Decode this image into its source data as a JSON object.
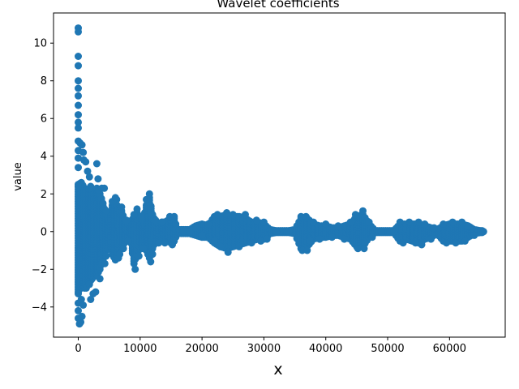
{
  "chart_data": {
    "type": "scatter",
    "title": "Wavelet coefficients",
    "xlabel": "x",
    "ylabel": "value",
    "xlim": [
      -4000,
      69000
    ],
    "ylim": [
      -5.6,
      11.6
    ],
    "xticks": [
      0,
      10000,
      20000,
      30000,
      40000,
      50000,
      60000
    ],
    "xtick_labels": [
      "0",
      "10000",
      "20000",
      "30000",
      "40000",
      "50000",
      "60000"
    ],
    "yticks": [
      -4,
      -2,
      0,
      2,
      4,
      6,
      8,
      10
    ],
    "ytick_labels": [
      "−4",
      "−2",
      "0",
      "2",
      "4",
      "6",
      "8",
      "10"
    ],
    "grid": false,
    "legend": "none",
    "marker_color": "#1f77b4",
    "series": [
      {
        "points": [
          [
            0,
            10.8
          ],
          [
            0,
            10.6
          ],
          [
            0,
            9.3
          ],
          [
            0,
            8.8
          ],
          [
            0,
            8.0
          ],
          [
            0,
            7.6
          ],
          [
            0,
            7.2
          ],
          [
            0,
            6.7
          ],
          [
            0,
            6.2
          ],
          [
            0,
            5.8
          ],
          [
            0,
            5.5
          ],
          [
            0,
            4.8
          ],
          [
            0,
            4.3
          ],
          [
            0,
            3.9
          ],
          [
            0,
            3.4
          ],
          [
            0,
            2.4
          ],
          [
            0,
            -3.3
          ],
          [
            0,
            -3.8
          ],
          [
            0,
            -4.2
          ],
          [
            0,
            -4.6
          ],
          [
            200,
            -4.9
          ],
          [
            400,
            -4.8
          ],
          [
            600,
            -4.5
          ],
          [
            300,
            4.7
          ],
          [
            600,
            4.6
          ],
          [
            800,
            4.2
          ],
          [
            900,
            3.8
          ],
          [
            500,
            -3.6
          ],
          [
            800,
            -3.9
          ],
          [
            1200,
            3.7
          ],
          [
            1500,
            3.2
          ],
          [
            1800,
            2.9
          ],
          [
            1300,
            -3.0
          ],
          [
            1800,
            -2.8
          ],
          [
            2000,
            -3.6
          ],
          [
            2400,
            -3.3
          ],
          [
            2800,
            -3.2
          ],
          [
            3000,
            3.6
          ],
          [
            3200,
            2.8
          ],
          [
            3300,
            2.2
          ],
          [
            3500,
            -2.5
          ],
          [
            3800,
            2.3
          ],
          [
            4200,
            2.3
          ],
          [
            4300,
            -1.7
          ],
          [
            4500,
            1.1
          ],
          [
            4500,
            -1.3
          ],
          [
            5500,
            1.6
          ],
          [
            6000,
            1.8
          ],
          [
            6200,
            1.7
          ],
          [
            6500,
            -1.4
          ],
          [
            6700,
            -1.2
          ],
          [
            7000,
            1.3
          ],
          [
            7300,
            -0.9
          ],
          [
            7800,
            0.6
          ],
          [
            8000,
            -0.5
          ],
          [
            9000,
            0.9
          ],
          [
            9200,
            -2.0
          ],
          [
            9500,
            1.2
          ],
          [
            9800,
            -1.3
          ],
          [
            10200,
            0.8
          ],
          [
            10500,
            -0.9
          ],
          [
            11000,
            1.7
          ],
          [
            11500,
            2.0
          ],
          [
            11700,
            -1.6
          ],
          [
            12000,
            -1.2
          ],
          [
            12500,
            0.6
          ],
          [
            13000,
            -0.6
          ],
          [
            13500,
            0.5
          ],
          [
            14000,
            -0.6
          ],
          [
            14800,
            0.8
          ],
          [
            15200,
            -0.7
          ],
          [
            15500,
            0.8
          ],
          [
            17000,
            0.0
          ],
          [
            18000,
            0.0
          ],
          [
            19000,
            0.2
          ],
          [
            20000,
            -0.2
          ],
          [
            21000,
            0.4
          ],
          [
            22000,
            -0.5
          ],
          [
            22500,
            0.9
          ],
          [
            23000,
            -0.8
          ],
          [
            24000,
            1.0
          ],
          [
            24200,
            -1.1
          ],
          [
            25000,
            0.9
          ],
          [
            26000,
            -0.8
          ],
          [
            27000,
            0.9
          ],
          [
            28000,
            -0.6
          ],
          [
            28800,
            0.6
          ],
          [
            29500,
            -0.5
          ],
          [
            30000,
            0.5
          ],
          [
            30500,
            -0.4
          ],
          [
            32000,
            0.0
          ],
          [
            34000,
            0.0
          ],
          [
            36000,
            0.8
          ],
          [
            36200,
            -1.0
          ],
          [
            36800,
            0.8
          ],
          [
            37000,
            -1.0
          ],
          [
            37500,
            -0.5
          ],
          [
            38000,
            0.5
          ],
          [
            39000,
            -0.4
          ],
          [
            40000,
            0.4
          ],
          [
            41000,
            -0.3
          ],
          [
            42000,
            0.3
          ],
          [
            43000,
            -0.4
          ],
          [
            44000,
            0.5
          ],
          [
            44800,
            0.9
          ],
          [
            45200,
            -0.9
          ],
          [
            46000,
            1.1
          ],
          [
            46200,
            -0.9
          ],
          [
            47000,
            0.5
          ],
          [
            47500,
            -0.3
          ],
          [
            49000,
            0.0
          ],
          [
            51000,
            0.0
          ],
          [
            52000,
            0.5
          ],
          [
            52500,
            -0.6
          ],
          [
            53500,
            0.5
          ],
          [
            54500,
            -0.6
          ],
          [
            55000,
            0.5
          ],
          [
            55500,
            -0.7
          ],
          [
            56000,
            0.4
          ],
          [
            57000,
            -0.4
          ],
          [
            57500,
            0.2
          ],
          [
            59000,
            0.4
          ],
          [
            59500,
            -0.6
          ],
          [
            60500,
            0.5
          ],
          [
            61000,
            -0.6
          ],
          [
            62000,
            0.5
          ],
          [
            62500,
            -0.5
          ],
          [
            63000,
            0.3
          ],
          [
            64000,
            -0.2
          ],
          [
            65000,
            0.0
          ],
          [
            65500,
            0.0
          ]
        ],
        "envelope": [
          [
            0,
            2.5,
            -3.2
          ],
          [
            500,
            2.6,
            -2.9
          ],
          [
            1000,
            2.3,
            -3.0
          ],
          [
            1500,
            2.1,
            -2.7
          ],
          [
            2000,
            2.4,
            -2.6
          ],
          [
            2500,
            2.0,
            -2.4
          ],
          [
            3000,
            2.3,
            -2.3
          ],
          [
            3500,
            2.0,
            -2.0
          ],
          [
            4000,
            1.5,
            -1.5
          ],
          [
            4500,
            0.9,
            -1.0
          ],
          [
            5000,
            0.6,
            -0.6
          ],
          [
            5500,
            1.4,
            -1.2
          ],
          [
            6000,
            1.6,
            -1.5
          ],
          [
            6500,
            1.2,
            -1.2
          ],
          [
            7000,
            1.1,
            -0.8
          ],
          [
            7500,
            0.6,
            -0.6
          ],
          [
            8000,
            0.4,
            -0.4
          ],
          [
            8500,
            0.5,
            -0.6
          ],
          [
            9000,
            0.8,
            -1.7
          ],
          [
            9500,
            1.0,
            -1.2
          ],
          [
            10000,
            0.7,
            -0.8
          ],
          [
            10500,
            0.6,
            -0.7
          ],
          [
            11000,
            1.4,
            -1.0
          ],
          [
            11500,
            1.8,
            -1.4
          ],
          [
            12000,
            0.9,
            -0.9
          ],
          [
            12500,
            0.5,
            -0.5
          ],
          [
            13000,
            0.4,
            -0.5
          ],
          [
            13500,
            0.5,
            -0.5
          ],
          [
            14000,
            0.5,
            -0.5
          ],
          [
            14500,
            0.6,
            -0.5
          ],
          [
            15000,
            0.7,
            -0.6
          ],
          [
            15500,
            0.7,
            -0.5
          ],
          [
            16000,
            0.1,
            -0.1
          ],
          [
            17000,
            0.1,
            -0.1
          ],
          [
            18000,
            0.1,
            -0.1
          ],
          [
            19000,
            0.3,
            -0.2
          ],
          [
            20000,
            0.4,
            -0.3
          ],
          [
            21000,
            0.3,
            -0.3
          ],
          [
            22000,
            0.8,
            -0.6
          ],
          [
            23000,
            0.8,
            -0.8
          ],
          [
            24000,
            0.9,
            -0.9
          ],
          [
            25000,
            0.8,
            -0.8
          ],
          [
            26000,
            0.8,
            -0.7
          ],
          [
            27000,
            0.7,
            -0.6
          ],
          [
            28000,
            0.5,
            -0.5
          ],
          [
            29000,
            0.5,
            -0.4
          ],
          [
            30000,
            0.4,
            -0.4
          ],
          [
            31000,
            0.1,
            -0.1
          ],
          [
            32000,
            0.05,
            -0.05
          ],
          [
            33000,
            0.05,
            -0.05
          ],
          [
            34000,
            0.05,
            -0.05
          ],
          [
            35000,
            0.1,
            -0.1
          ],
          [
            36000,
            0.7,
            -0.9
          ],
          [
            37000,
            0.7,
            -0.8
          ],
          [
            38000,
            0.4,
            -0.4
          ],
          [
            39000,
            0.3,
            -0.3
          ],
          [
            40000,
            0.3,
            -0.3
          ],
          [
            41000,
            0.2,
            -0.2
          ],
          [
            42000,
            0.2,
            -0.2
          ],
          [
            43000,
            0.3,
            -0.3
          ],
          [
            44000,
            0.4,
            -0.4
          ],
          [
            45000,
            0.8,
            -0.8
          ],
          [
            46000,
            0.9,
            -0.8
          ],
          [
            47000,
            0.4,
            -0.3
          ],
          [
            48000,
            0.05,
            -0.05
          ],
          [
            49000,
            0.05,
            -0.05
          ],
          [
            50000,
            0.05,
            -0.05
          ],
          [
            51000,
            0.05,
            -0.05
          ],
          [
            52000,
            0.4,
            -0.5
          ],
          [
            53000,
            0.4,
            -0.4
          ],
          [
            54000,
            0.4,
            -0.5
          ],
          [
            55000,
            0.4,
            -0.6
          ],
          [
            56000,
            0.3,
            -0.4
          ],
          [
            57000,
            0.2,
            -0.3
          ],
          [
            58000,
            0.1,
            -0.1
          ],
          [
            59000,
            0.3,
            -0.5
          ],
          [
            60000,
            0.4,
            -0.5
          ],
          [
            61000,
            0.4,
            -0.5
          ],
          [
            62000,
            0.4,
            -0.5
          ],
          [
            63000,
            0.3,
            -0.3
          ],
          [
            64000,
            0.1,
            -0.1
          ],
          [
            65000,
            0.05,
            -0.05
          ],
          [
            65500,
            0.05,
            -0.05
          ]
        ]
      }
    ]
  }
}
